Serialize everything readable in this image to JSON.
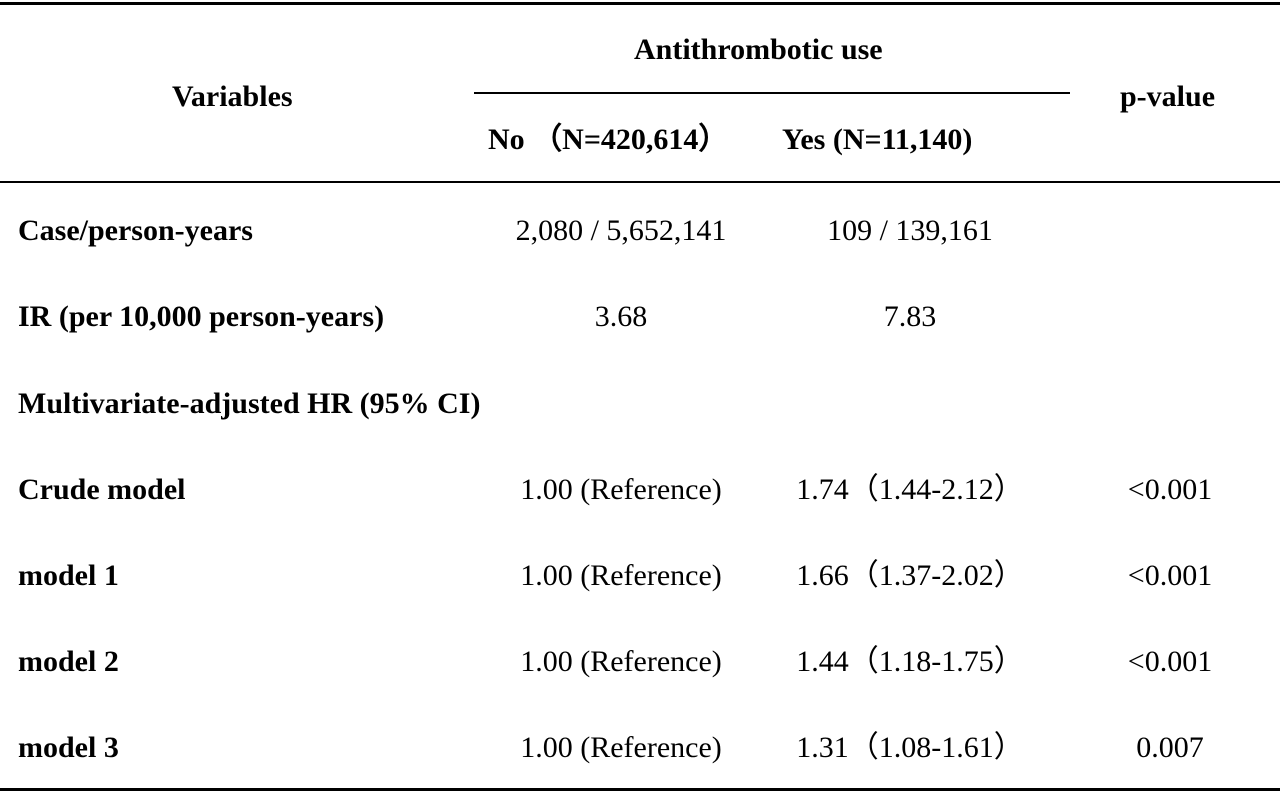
{
  "table": {
    "header": {
      "variables": "Variables",
      "group": "Antithrombotic use",
      "no": "No （N=420,614）",
      "yes": "Yes (N=11,140)",
      "pvalue": "p-value"
    },
    "rows": [
      {
        "label": "Case/person-years",
        "no": "2,080 / 5,652,141",
        "yes": "109 / 139,161",
        "p": ""
      },
      {
        "label": "IR (per 10,000 person-years)",
        "no": "3.68",
        "yes": "7.83",
        "p": ""
      },
      {
        "label": "Multivariate-adjusted HR (95% CI)",
        "no": "",
        "yes": "",
        "p": ""
      },
      {
        "label": "Crude model",
        "no": "1.00 (Reference)",
        "yes": "1.74（1.44-2.12）",
        "p": "<0.001"
      },
      {
        "label": "model 1",
        "no": "1.00 (Reference)",
        "yes": "1.66（1.37-2.02）",
        "p": "<0.001"
      },
      {
        "label": "model 2",
        "no": "1.00 (Reference)",
        "yes": "1.44（1.18-1.75）",
        "p": "<0.001"
      },
      {
        "label": "model 3",
        "no": "1.00 (Reference)",
        "yes": "1.31（1.08-1.61）",
        "p": "0.007"
      }
    ]
  }
}
